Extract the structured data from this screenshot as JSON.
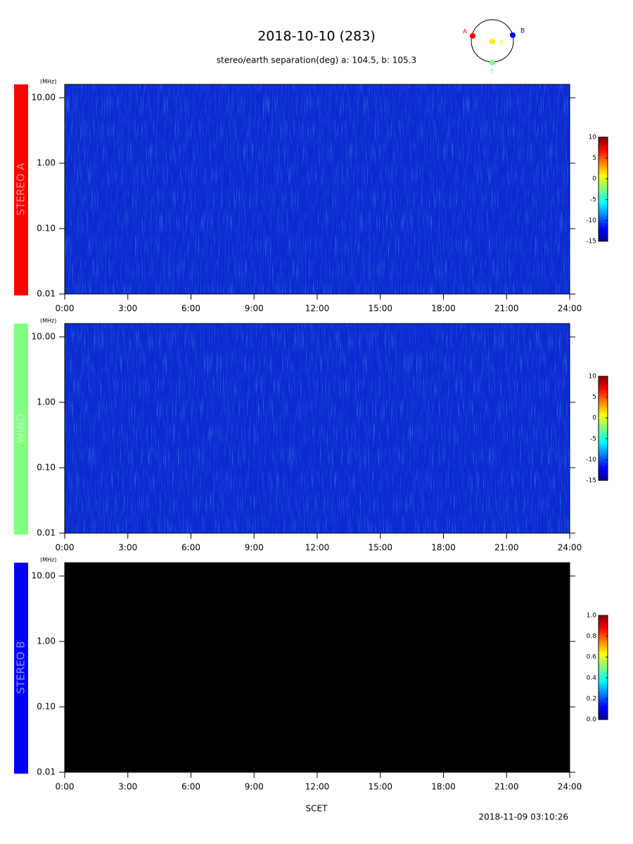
{
  "title": "2018-10-10 (283)",
  "subtitle": "stereo/earth separation(deg) a: 104.5, b: 105.3",
  "orbit_labels": {
    "a": "A",
    "b": "B",
    "s": "S",
    "e": "E"
  },
  "x_label": "SCET",
  "timestamp": "2018-11-09 03:10:26",
  "chart_data": [
    {
      "type": "spectrogram",
      "panel_label": "STEREO A",
      "label_color": "#ff0000",
      "color": "#0b2bd0",
      "y_unit": "(MHz)",
      "log_y": true,
      "xlim": [
        0,
        24
      ],
      "ylim": [
        0.01,
        16
      ],
      "xticks": [
        {
          "value": 0,
          "label": "0:00"
        },
        {
          "value": 3,
          "label": "3:00"
        },
        {
          "value": 6,
          "label": "6:00"
        },
        {
          "value": 9,
          "label": "9:00"
        },
        {
          "value": 12,
          "label": "12:00"
        },
        {
          "value": 15,
          "label": "15:00"
        },
        {
          "value": 18,
          "label": "18:00"
        },
        {
          "value": 21,
          "label": "21:00"
        },
        {
          "value": 24,
          "label": "24:00"
        }
      ],
      "yticks": [
        0.01,
        {
          "value": 0.1,
          "label": "0.10"
        },
        {
          "value": 1,
          "label": "1.00"
        },
        {
          "value": 10,
          "label": "10.00"
        }
      ],
      "clim": [
        -15,
        10
      ],
      "cticks": [
        10,
        5,
        0,
        -5,
        -10,
        -15
      ]
    },
    {
      "type": "spectrogram",
      "panel_label": "WIND",
      "label_color": "#80ff80",
      "color": "#0b2bd0",
      "y_unit": "(MHz)",
      "log_y": true,
      "xlim": [
        0,
        24
      ],
      "ylim": [
        0.01,
        16
      ],
      "xticks": [
        {
          "value": 0,
          "label": "0:00"
        },
        {
          "value": 3,
          "label": "3:00"
        },
        {
          "value": 6,
          "label": "6:00"
        },
        {
          "value": 9,
          "label": "9:00"
        },
        {
          "value": 12,
          "label": "12:00"
        },
        {
          "value": 15,
          "label": "15:00"
        },
        {
          "value": 18,
          "label": "18:00"
        },
        {
          "value": 21,
          "label": "21:00"
        },
        {
          "value": 24,
          "label": "24:00"
        }
      ],
      "yticks": [
        0.01,
        {
          "value": 0.1,
          "label": "0.10"
        },
        {
          "value": 1,
          "label": "1.00"
        },
        {
          "value": 10,
          "label": "10.00"
        }
      ],
      "clim": [
        -15,
        10
      ],
      "cticks": [
        10,
        5,
        0,
        -5,
        -10,
        -15
      ]
    },
    {
      "type": "spectrogram",
      "panel_label": "STEREO B",
      "label_color": "#0000ff",
      "color": "#000000",
      "y_unit": "(MHz)",
      "log_y": true,
      "xlim": [
        0,
        24
      ],
      "ylim": [
        0.01,
        16
      ],
      "xticks": [
        {
          "value": 0,
          "label": "0:00"
        },
        {
          "value": 3,
          "label": "3:00"
        },
        {
          "value": 6,
          "label": "6:00"
        },
        {
          "value": 9,
          "label": "9:00"
        },
        {
          "value": 12,
          "label": "12:00"
        },
        {
          "value": 15,
          "label": "15:00"
        },
        {
          "value": 18,
          "label": "18:00"
        },
        {
          "value": 21,
          "label": "21:00"
        },
        {
          "value": 24,
          "label": "24:00"
        }
      ],
      "yticks": [
        0.01,
        {
          "value": 0.1,
          "label": "0.10"
        },
        {
          "value": 1,
          "label": "1.00"
        },
        {
          "value": 10,
          "label": "10.00"
        }
      ],
      "clim": [
        0,
        1
      ],
      "cticks": [
        {
          "value": 1,
          "label": "1.0"
        },
        {
          "value": 0.8,
          "label": "0.8"
        },
        {
          "value": 0.6,
          "label": "0.6"
        },
        {
          "value": 0.4,
          "label": "0.4"
        },
        {
          "value": 0.2,
          "label": "0.2"
        },
        {
          "value": 0,
          "label": "0.0"
        }
      ]
    }
  ]
}
